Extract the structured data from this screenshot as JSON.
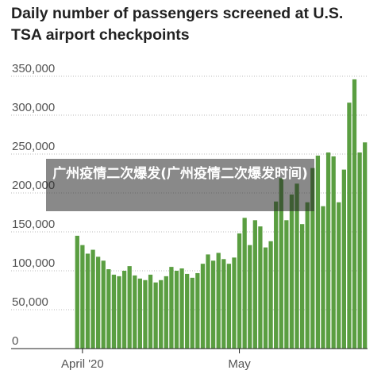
{
  "chart_data": {
    "type": "bar",
    "title": "Daily number of passengers screened at U.S. TSA airport checkpoints",
    "overlay_text": "广州疫情二次爆发(广州疫情二次爆发时间)",
    "categories": [
      null,
      "April '20",
      null,
      null,
      null,
      null,
      null,
      null,
      null,
      null,
      null,
      null,
      null,
      null,
      null,
      null,
      null,
      null,
      null,
      null,
      null,
      null,
      null,
      null,
      null,
      null,
      null,
      null,
      null,
      null,
      null,
      "May",
      null,
      null,
      null,
      null,
      null,
      null,
      null,
      null,
      null,
      null,
      null,
      null,
      null,
      null,
      null,
      null,
      null,
      null,
      null,
      null,
      null,
      null,
      null,
      null
    ],
    "values": [
      145000,
      133000,
      122000,
      127000,
      118000,
      113000,
      102000,
      95000,
      93000,
      100000,
      106000,
      94000,
      90000,
      88000,
      95000,
      85000,
      88000,
      93000,
      105000,
      100000,
      103000,
      96000,
      91000,
      97000,
      109000,
      121000,
      113000,
      123000,
      115000,
      109000,
      117000,
      148000,
      168000,
      133000,
      165000,
      157000,
      130000,
      138000,
      189000,
      219000,
      165000,
      198000,
      212000,
      160000,
      188000,
      232000,
      248000,
      183000,
      252000,
      247000,
      188000,
      230000,
      316000,
      346000,
      252000,
      265000
    ],
    "color": "#5a9e41",
    "ylim": [
      0,
      350000
    ],
    "yticks": [
      0,
      {
        "value": 50000,
        "label": "50,000"
      },
      {
        "value": 100000,
        "label": "100,000"
      },
      {
        "value": 150000,
        "label": "150,000"
      },
      {
        "value": 200000,
        "label": "200,000"
      },
      {
        "value": 250000,
        "label": "250,000"
      },
      {
        "value": 300000,
        "label": "300,000"
      },
      {
        "value": 350000,
        "label": "350,000"
      }
    ],
    "grid": true
  }
}
